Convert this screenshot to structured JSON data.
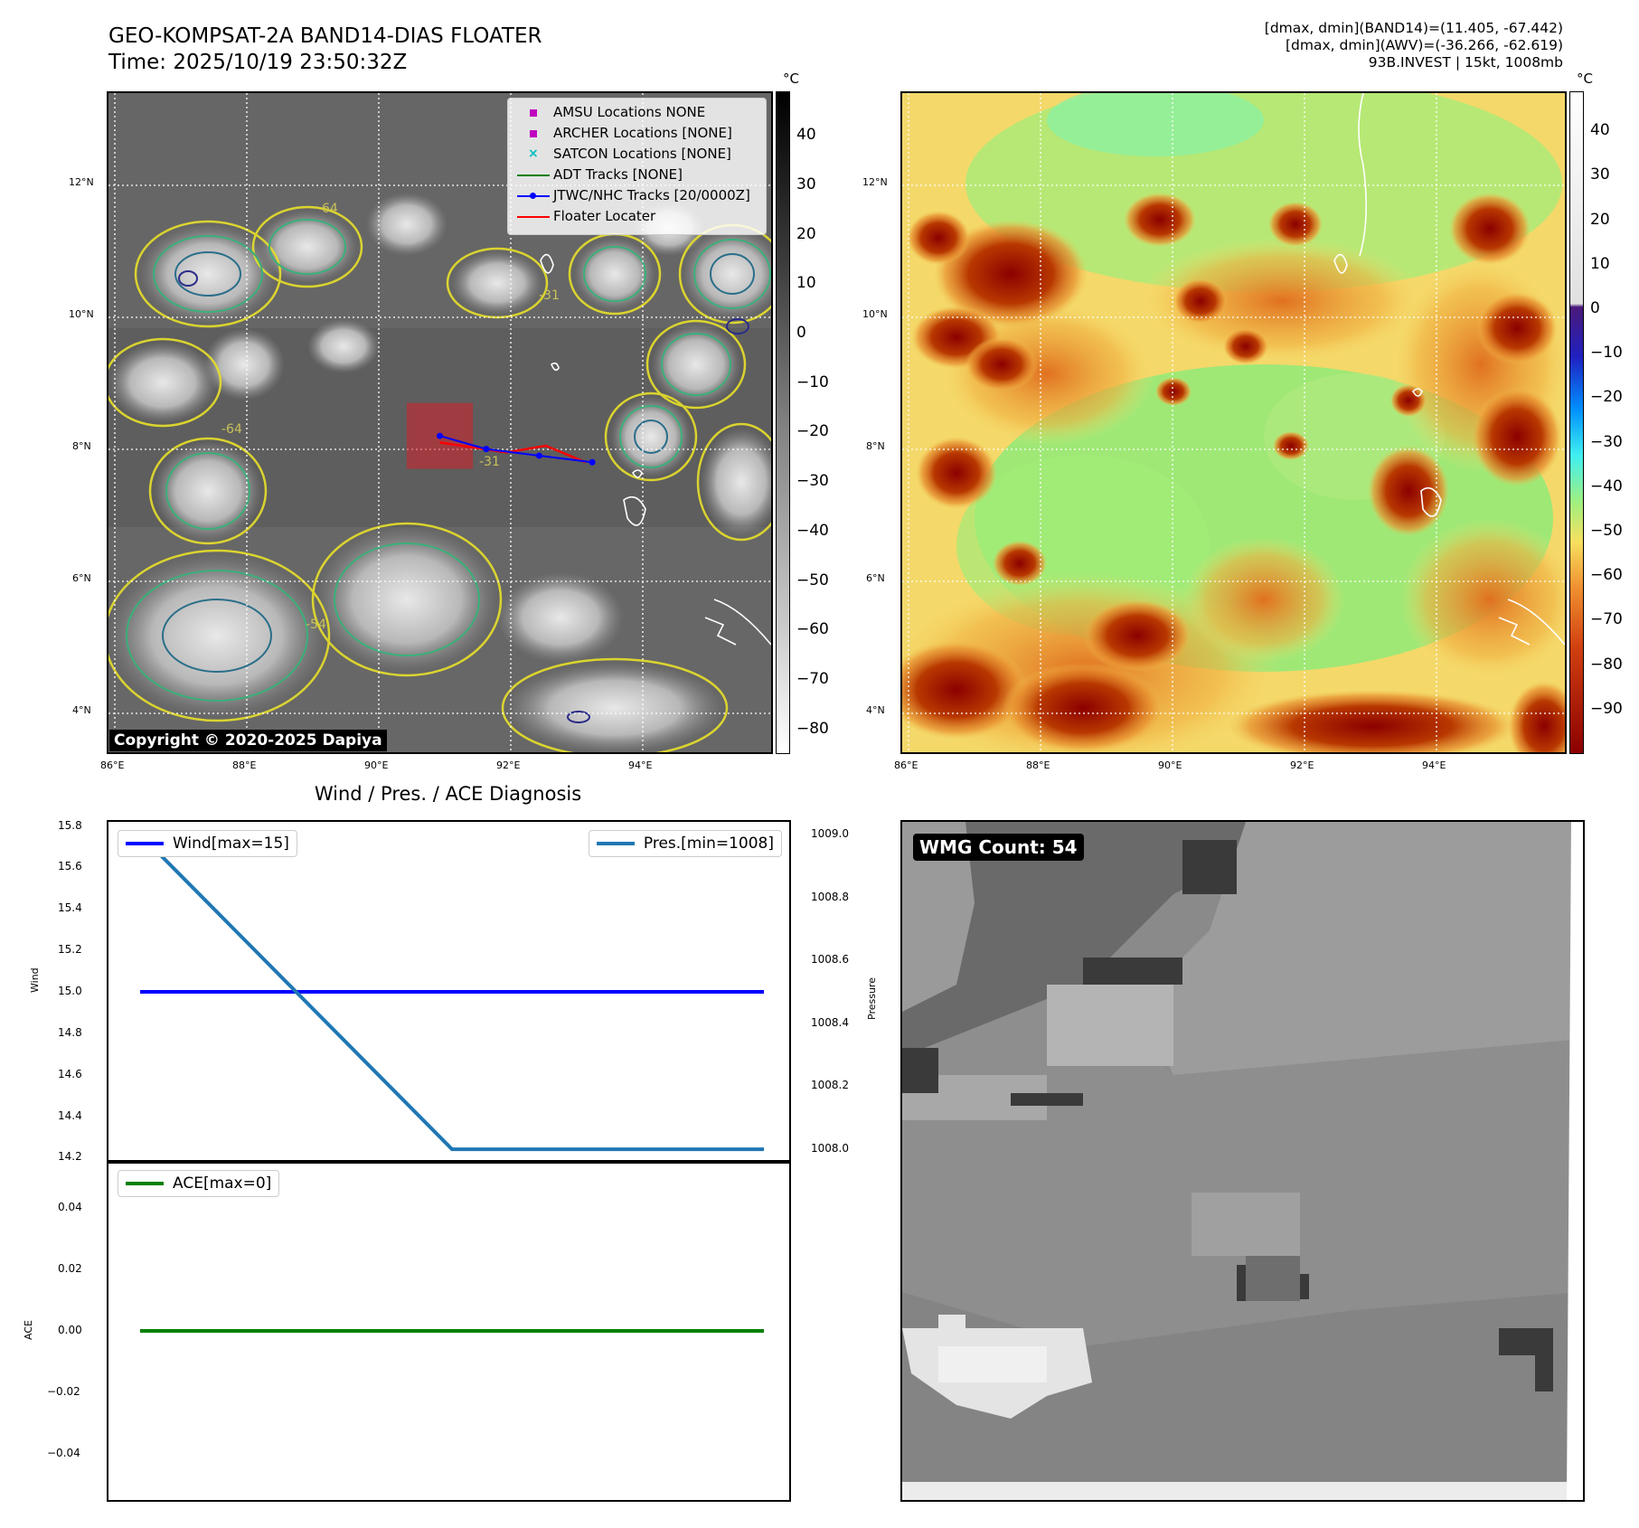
{
  "header": {
    "title_line1": "GEO-KOMPSAT-2A BAND14-DIAS FLOATER",
    "title_line2": "Time: 2025/10/19 23:50:32Z",
    "info_line1": "[dmax, dmin](BAND14)=(11.405, -67.442)",
    "info_line2": "[dmax, dmin](AWV)=(-36.266, -62.619)",
    "info_line3": "93B.INVEST | 15kt, 1008mb"
  },
  "map_axes": {
    "lat_labels": [
      "12°N",
      "10°N",
      "8°N",
      "6°N",
      "4°N"
    ],
    "lon_labels": [
      "86°E",
      "88°E",
      "90°E",
      "92°E",
      "94°E"
    ],
    "lon_range": [
      85.9,
      95.9
    ],
    "lat_range": [
      3.6,
      13.6
    ]
  },
  "ir_panel": {
    "colorbar_unit": "°C",
    "colorbar_ticks": [
      "40",
      "30",
      "20",
      "10",
      "0",
      "−10",
      "−20",
      "−30",
      "−40",
      "−50",
      "−60",
      "−70",
      "−80"
    ],
    "colorbar_range": [
      -85,
      49
    ],
    "copyright": "Copyright © 2020-2025 Dapiya",
    "contour_labels": [
      "64",
      "-31",
      "-64",
      "-54",
      "-31"
    ],
    "legend": [
      {
        "label": "AMSU Locations NONE",
        "marker": "square",
        "color": "#bf00bf"
      },
      {
        "label": "ARCHER Locations [NONE]",
        "marker": "square",
        "color": "#bf00bf"
      },
      {
        "label": "SATCON Locations [NONE]",
        "marker": "x",
        "color": "#00bfbf"
      },
      {
        "label": "ADT Tracks [NONE]",
        "marker": "line",
        "color": "#008000"
      },
      {
        "label": "JTWC/NHC Tracks [20/0000Z]",
        "marker": "line-dot",
        "color": "#0000ff"
      },
      {
        "label": "Floater Locater",
        "marker": "line",
        "color": "#ff0000"
      }
    ],
    "jtwc_track": [
      [
        90.9,
        8.4
      ],
      [
        91.6,
        8.2
      ],
      [
        92.4,
        8.1
      ],
      [
        93.2,
        8.0
      ]
    ],
    "floater_track": [
      [
        90.9,
        8.3
      ],
      [
        91.9,
        8.15
      ],
      [
        92.5,
        8.25
      ],
      [
        93.1,
        8.0
      ]
    ],
    "floater_box": {
      "lon": [
        90.4,
        91.4
      ],
      "lat": [
        7.9,
        8.9
      ]
    }
  },
  "awv_panel": {
    "colorbar_unit": "°C",
    "colorbar_ticks": [
      "40",
      "30",
      "20",
      "10",
      "0",
      "−10",
      "−20",
      "−30",
      "−40",
      "−50",
      "−60",
      "−70",
      "−80",
      "−90"
    ],
    "colorbar_range": [
      -100,
      49
    ]
  },
  "diagnosis": {
    "title": "Wind / Pres. / ACE Diagnosis",
    "wind_label": "Wind",
    "pressure_label": "Pressure",
    "ace_label": "ACE",
    "wind_ticks": [
      "15.8",
      "15.6",
      "15.4",
      "15.2",
      "15.0",
      "14.8",
      "14.6",
      "14.4",
      "14.2"
    ],
    "pressure_ticks": [
      "1009.0",
      "1008.8",
      "1008.6",
      "1008.4",
      "1008.2",
      "1008.0"
    ],
    "ace_ticks": [
      "0.04",
      "0.02",
      "0.00",
      "−0.02",
      "−0.04"
    ],
    "wind_legend": "Wind[max=15]",
    "pressure_legend": "Pres.[min=1008]",
    "ace_legend": "ACE[max=0]",
    "wind_color": "#0000ff",
    "pressure_color": "#1f77b4",
    "ace_color": "#008000"
  },
  "wmg_panel": {
    "count_label": "WMG Count: 54"
  },
  "chart_data": [
    {
      "type": "line",
      "title": "Wind / Pres. / ACE Diagnosis",
      "x": [
        0,
        1,
        2
      ],
      "series": [
        {
          "name": "Wind[max=15]",
          "values": [
            15,
            15,
            15
          ],
          "axis": "left"
        },
        {
          "name": "Pres.[min=1008]",
          "values": [
            1009,
            1008,
            1008
          ],
          "axis": "right"
        }
      ],
      "ylabel": "Wind",
      "y2label": "Pressure",
      "ylim": [
        14.18,
        15.82
      ],
      "y2lim": [
        1007.96,
        1009.04
      ]
    },
    {
      "type": "line",
      "x": [
        0,
        1,
        2
      ],
      "series": [
        {
          "name": "ACE[max=0]",
          "values": [
            0,
            0,
            0
          ]
        }
      ],
      "ylabel": "ACE",
      "ylim": [
        -0.055,
        0.055
      ]
    }
  ]
}
